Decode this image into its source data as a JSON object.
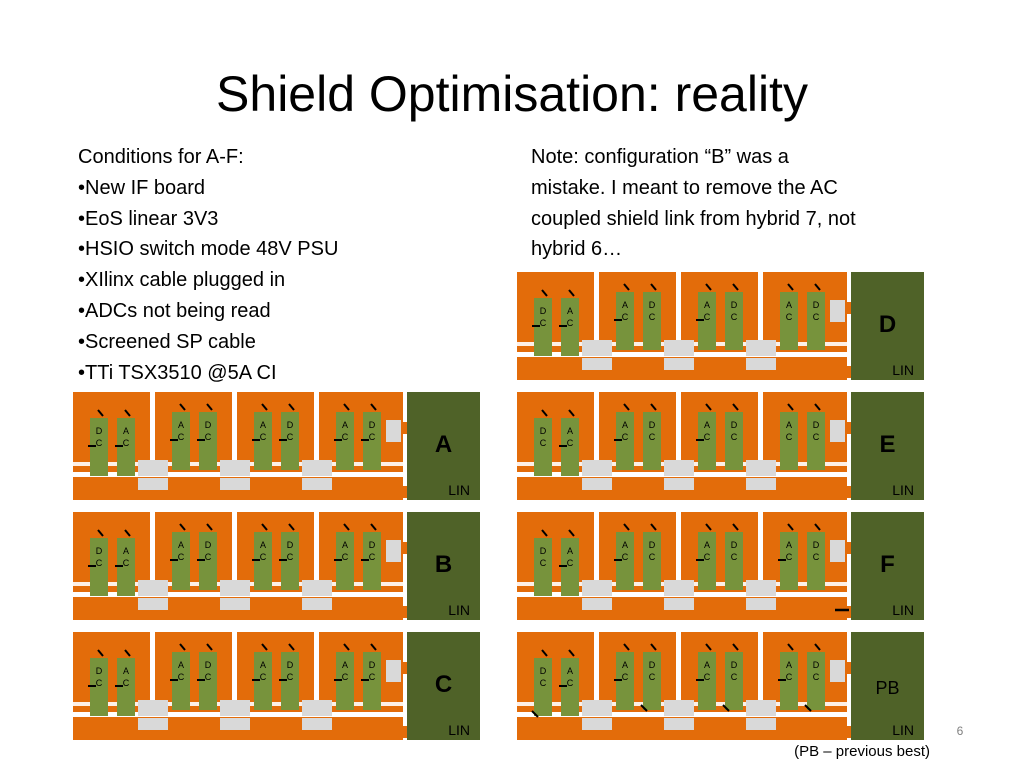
{
  "slide": {
    "title": "Shield Optimisation: reality",
    "slide_number": "6",
    "footnote": "(PB – previous best)"
  },
  "conditions": {
    "heading": "Conditions for A-F:",
    "items": [
      "•New IF board",
      "•EoS linear 3V3",
      "•HSIO switch mode 48V PSU",
      "•XIlinx cable plugged in",
      "•ADCs not being read",
      "•Screened SP cable",
      "•TTi TSX3510 @5A CI"
    ]
  },
  "note": {
    "lines": [
      "Note: configuration “B” was a",
      "mistake. I meant to remove the AC",
      "coupled shield link from hybrid 7, not",
      "hybrid 6…"
    ]
  },
  "colors": {
    "board": "#e36c0a",
    "hybrid": "#77933c",
    "end_panel": "#4f6228",
    "pad": "#d9d9d9"
  },
  "diagram": {
    "chip_labels": {
      "dc": [
        "D",
        "C"
      ],
      "ac": [
        "A",
        "C"
      ]
    },
    "end_label": "LIN",
    "hybrid_order": [
      [
        "dc",
        "ac"
      ],
      [
        "ac",
        "dc"
      ],
      [
        "ac",
        "dc"
      ],
      [
        "ac",
        "dc"
      ]
    ],
    "configs": [
      {
        "name": "A",
        "links": [
          [
            "dash",
            "dash"
          ],
          [
            "dash",
            "dash"
          ],
          [
            "dash",
            "dash"
          ],
          [
            "dash",
            "dash"
          ]
        ],
        "extra_link": false
      },
      {
        "name": "B",
        "links": [
          [
            "dash",
            "dash"
          ],
          [
            "dash",
            "dash"
          ],
          [
            "dash",
            "dash"
          ],
          [
            "dash",
            "dash"
          ]
        ],
        "extra_link": false
      },
      {
        "name": "C",
        "links": [
          [
            "dash",
            "dash"
          ],
          [
            "dash",
            "dash"
          ],
          [
            "dash",
            "dash"
          ],
          [
            "dash",
            "dash"
          ]
        ],
        "extra_link": false
      },
      {
        "name": "D",
        "links": [
          [
            "dash",
            "dash"
          ],
          [
            "dash",
            "none"
          ],
          [
            "dash",
            "none"
          ],
          [
            "none",
            "none"
          ]
        ],
        "extra_link": false
      },
      {
        "name": "E",
        "links": [
          [
            "none",
            "dash"
          ],
          [
            "dash",
            "none"
          ],
          [
            "dash",
            "none"
          ],
          [
            "none",
            "none"
          ]
        ],
        "extra_link": false
      },
      {
        "name": "F",
        "links": [
          [
            "none",
            "dash"
          ],
          [
            "dash",
            "none"
          ],
          [
            "dash",
            "none"
          ],
          [
            "dash",
            "none"
          ]
        ],
        "extra_link": true
      },
      {
        "name": "PB",
        "links": [
          [
            "slash",
            "dash"
          ],
          [
            "dash",
            "slash"
          ],
          [
            "dash",
            "slash"
          ],
          [
            "dash",
            "slash"
          ]
        ],
        "extra_link": false
      }
    ]
  }
}
